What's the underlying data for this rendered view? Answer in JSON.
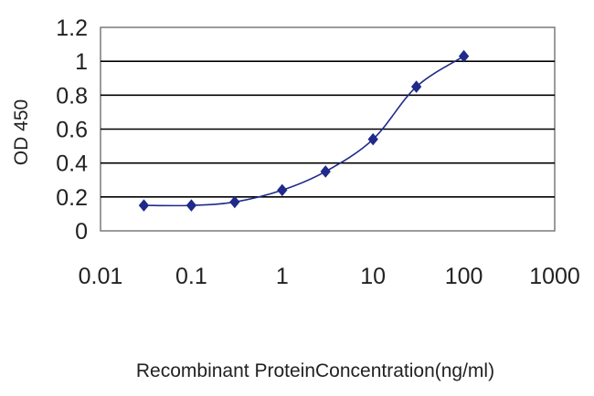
{
  "chart_data": {
    "type": "line",
    "title": "",
    "xlabel": "Recombinant ProteinConcentration(ng/ml)",
    "ylabel": "OD 450",
    "xscale": "log",
    "xlim": [
      0.01,
      1000
    ],
    "ylim": [
      0,
      1.2
    ],
    "grid": "horizontal",
    "legend": "none",
    "x_tick_labels": [
      "0.01",
      "0.1",
      "1",
      "10",
      "100",
      "1000"
    ],
    "y_tick_labels": [
      "0",
      "0.2",
      "0.4",
      "0.6",
      "0.8",
      "1",
      "1.2"
    ],
    "x_ticks": [
      0.01,
      0.1,
      1,
      10,
      100,
      1000
    ],
    "y_ticks": [
      0,
      0.2,
      0.4,
      0.6,
      0.8,
      1,
      1.2
    ],
    "series": [
      {
        "color": "#1f2a8a",
        "marker": "diamond",
        "x": [
          0.03,
          0.1,
          0.3,
          1,
          3,
          10,
          30,
          100
        ],
        "y": [
          0.15,
          0.15,
          0.17,
          0.24,
          0.35,
          0.54,
          0.85,
          1.03
        ]
      }
    ]
  }
}
